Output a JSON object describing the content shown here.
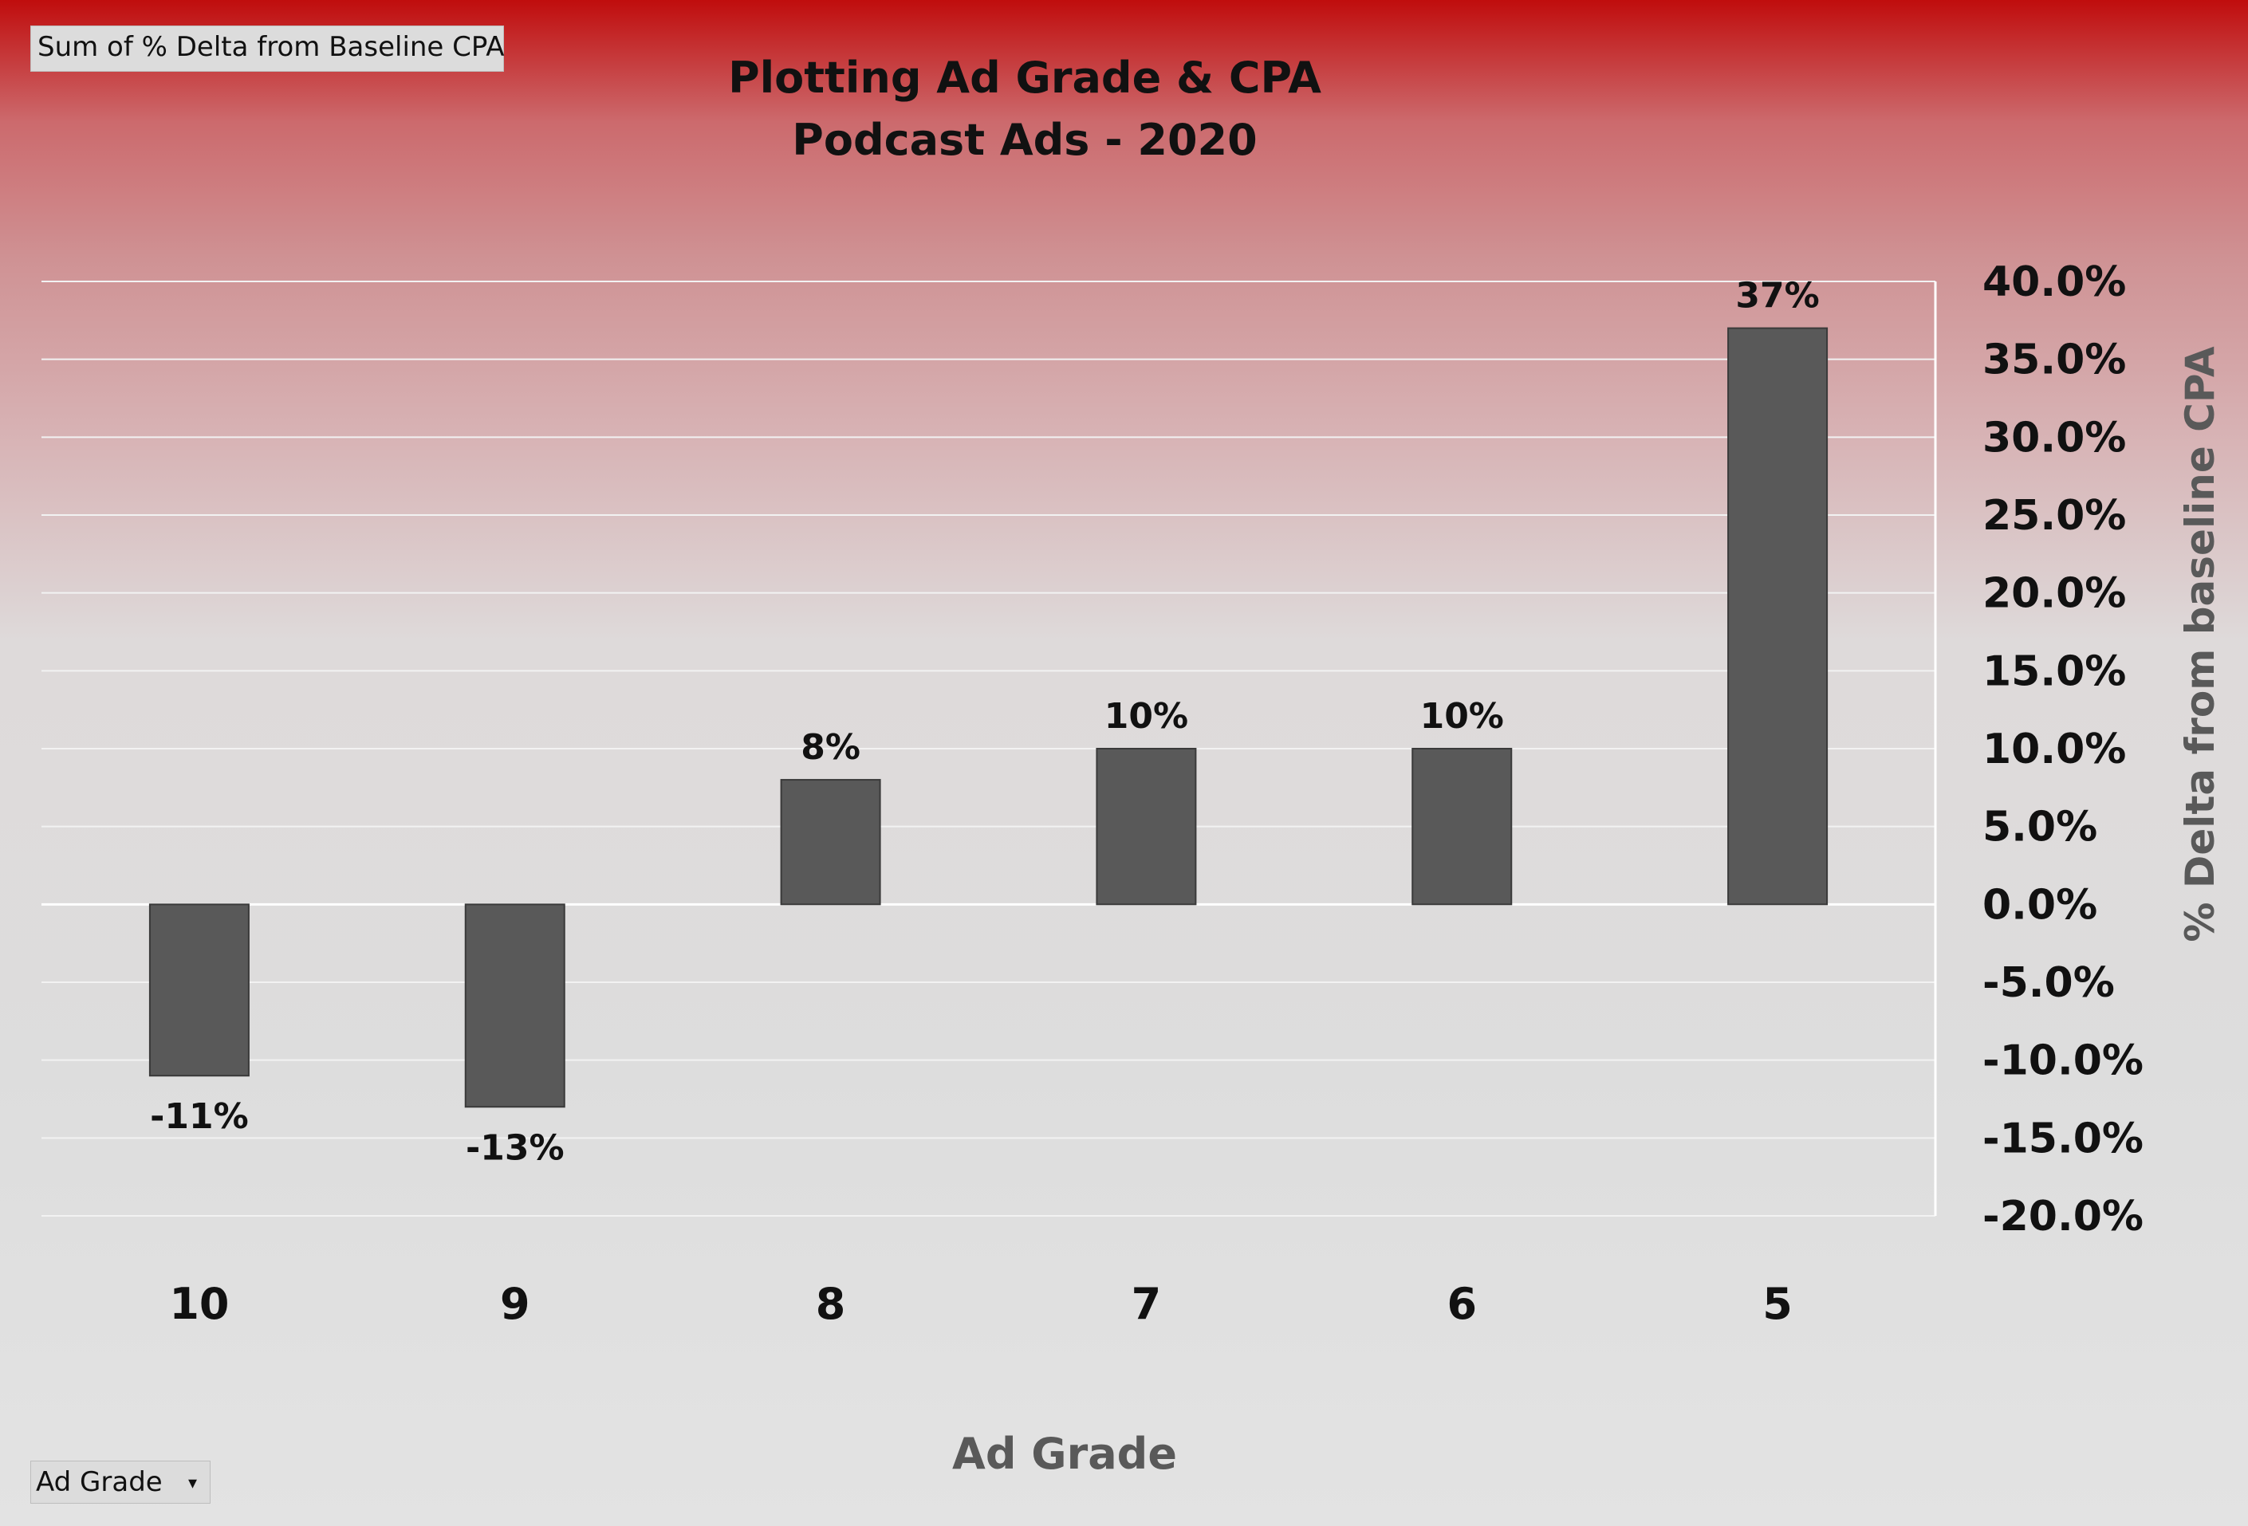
{
  "field_buttons": {
    "value_field": "Sum of % Delta from Baseline CPA",
    "axis_field": "Ad Grade"
  },
  "chart_data": {
    "type": "bar",
    "title": "Plotting Ad Grade & CPA",
    "subtitle": "Podcast Ads - 2020",
    "xlabel": "Ad Grade",
    "ylabel": "% Delta from baseline CPA",
    "categories": [
      "10",
      "9",
      "8",
      "7",
      "6",
      "5"
    ],
    "series": [
      {
        "values": [
          -0.11,
          -0.13,
          0.08,
          0.1,
          0.1,
          0.37
        ],
        "data_labels": [
          "-11%",
          "-13%",
          "8%",
          "10%",
          "10%",
          "37%"
        ]
      }
    ],
    "ylim": [
      -0.2,
      0.4
    ],
    "yticks": [
      0.4,
      0.35,
      0.3,
      0.25,
      0.2,
      0.15,
      0.1,
      0.05,
      0.0,
      -0.05,
      -0.1,
      -0.15,
      -0.2
    ],
    "ytick_labels": [
      "40.0%",
      "35.0%",
      "30.0%",
      "25.0%",
      "20.0%",
      "15.0%",
      "10.0%",
      "5.0%",
      "0.0%",
      "-5.0%",
      "-10.0%",
      "-15.0%",
      "-20.0%"
    ],
    "y_axis_side": "right",
    "grid": true,
    "legend": "none",
    "colors": {
      "bar": "#595959",
      "bar_edge": "#3a3a3a",
      "gridline": "#f2f2f2",
      "text": "#111111",
      "axis_title": "#595959"
    }
  }
}
